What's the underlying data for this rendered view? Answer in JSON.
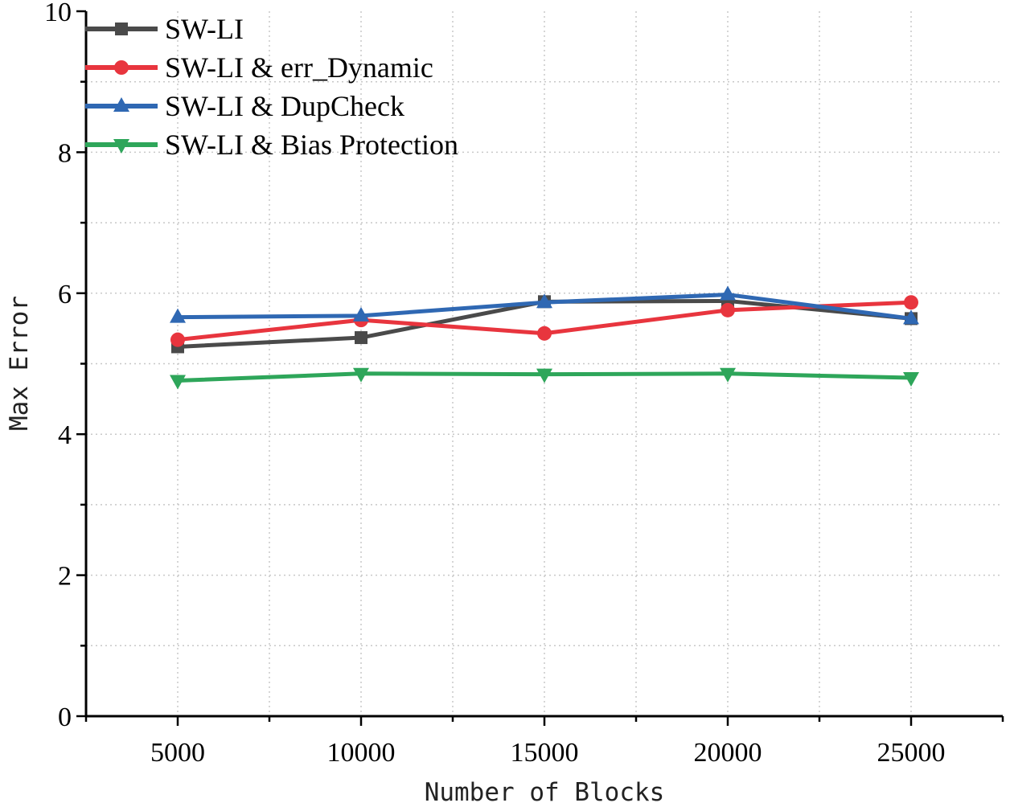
{
  "chart_data": {
    "type": "line",
    "title": "",
    "xlabel": "Number of Blocks",
    "ylabel": "Max Error",
    "x": [
      5000,
      10000,
      15000,
      20000,
      25000
    ],
    "xlim": [
      2500,
      27500
    ],
    "ylim": [
      0,
      10
    ],
    "xticks": [
      "5000",
      "10000",
      "15000",
      "20000",
      "25000"
    ],
    "yticks": [
      "0",
      "2",
      "4",
      "6",
      "8",
      "10"
    ],
    "grid": "dotted",
    "legend_position": "top-left",
    "series": [
      {
        "name": "SW-LI",
        "color": "#4a4a4a",
        "marker": "square",
        "values": [
          5.24,
          5.37,
          5.88,
          5.89,
          5.64
        ]
      },
      {
        "name": "SW-LI & err_Dynamic",
        "color": "#e8353e",
        "marker": "circle",
        "values": [
          5.34,
          5.62,
          5.43,
          5.76,
          5.87
        ]
      },
      {
        "name": "SW-LI & DupCheck",
        "color": "#2f68b3",
        "marker": "triangle-up",
        "values": [
          5.66,
          5.68,
          5.87,
          5.98,
          5.64
        ]
      },
      {
        "name": "SW-LI & Bias Protection",
        "color": "#2ea65a",
        "marker": "triangle-down",
        "values": [
          4.76,
          4.86,
          4.85,
          4.86,
          4.8
        ]
      }
    ]
  }
}
